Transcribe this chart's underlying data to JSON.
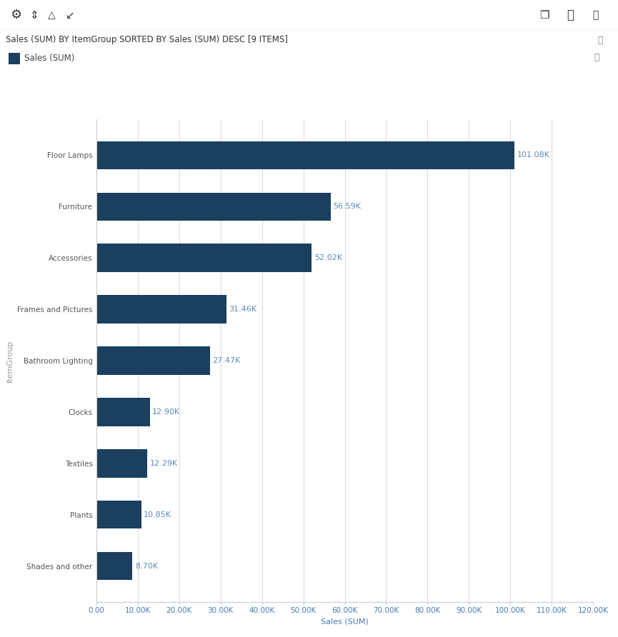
{
  "categories": [
    "Floor Lamps",
    "Furniture",
    "Accessories",
    "Frames and Pictures",
    "Bathroom Lighting",
    "Clocks",
    "Textiles",
    "Plants",
    "Shades and other"
  ],
  "values": [
    101080,
    56590,
    52020,
    31460,
    27470,
    12900,
    12290,
    10850,
    8700
  ],
  "labels": [
    "101.08K",
    "56.59K",
    "52.02K",
    "31.46K",
    "27.47K",
    "12.90K",
    "12.29K",
    "10.85K",
    "8.70K"
  ],
  "bar_color": "#1b3f5e",
  "label_color": "#5a8abf",
  "xlabel": "Sales (SUM)",
  "ylabel": "ItemGroup",
  "title": "Sales (SUM) BY ItemGroup SORTED BY Sales (SUM) DESC [9 ITEMS]",
  "title_fontsize": 8.5,
  "axis_label_fontsize": 8,
  "tick_fontsize": 7.5,
  "bar_label_fontsize": 8,
  "legend_label": "Sales (SUM)",
  "legend_color": "#1b3f5e",
  "xlim": [
    0,
    120000
  ],
  "xticks": [
    0,
    10000,
    20000,
    30000,
    40000,
    50000,
    60000,
    70000,
    80000,
    90000,
    100000,
    110000,
    120000
  ],
  "xtick_labels": [
    "0.00",
    "10.00K",
    "20.00K",
    "30.00K",
    "40.00K",
    "50.00K",
    "60.00K",
    "70.00K",
    "80.00K",
    "90.00K",
    "100.00K",
    "110.00K",
    "120.00K"
  ],
  "background_color": "#ffffff",
  "grid_color": "#d8d8d8",
  "header_bg": "#f0f0f0",
  "ytick_color": "#555555",
  "xtick_color": "#4a7ab5",
  "xlabel_color": "#4a7ab5",
  "ylabel_color": "#999999",
  "title_color": "#333333",
  "header_separator_color": "#cccccc"
}
